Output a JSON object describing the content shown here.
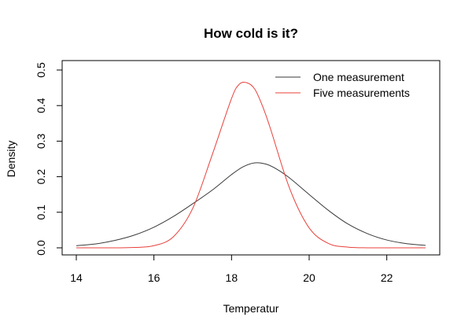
{
  "chart_data": {
    "type": "line",
    "title": "How cold is it?",
    "xlabel": "Temperatur",
    "ylabel": "Density",
    "xlim": [
      14,
      23
    ],
    "ylim": [
      0,
      0.5
    ],
    "x_ticks": [
      14,
      16,
      18,
      20,
      22
    ],
    "y_ticks": [
      0.0,
      0.1,
      0.2,
      0.3,
      0.4,
      0.5
    ],
    "x_tick_labels": [
      "14",
      "16",
      "18",
      "20",
      "22"
    ],
    "y_tick_labels": [
      "0.0",
      "0.1",
      "0.2",
      "0.3",
      "0.4",
      "0.5"
    ],
    "grid": false,
    "legend_position": "top-right",
    "series": [
      {
        "name": "One measurement",
        "color": "#3a3a3a",
        "x": [
          14.0,
          14.5,
          15.0,
          15.5,
          16.0,
          16.5,
          17.0,
          17.5,
          18.0,
          18.3,
          18.6,
          18.9,
          19.2,
          19.5,
          20.0,
          20.5,
          21.0,
          21.5,
          22.0,
          22.5,
          23.0
        ],
        "y": [
          0.006,
          0.011,
          0.021,
          0.036,
          0.058,
          0.088,
          0.124,
          0.162,
          0.206,
          0.228,
          0.239,
          0.235,
          0.219,
          0.196,
          0.15,
          0.105,
          0.067,
          0.04,
          0.022,
          0.012,
          0.007
        ]
      },
      {
        "name": "Five measurements",
        "color": "#e8403a",
        "x": [
          14.0,
          15.0,
          15.5,
          16.0,
          16.5,
          17.0,
          17.5,
          18.0,
          18.2,
          18.4,
          18.6,
          18.8,
          19.0,
          19.5,
          20.0,
          20.5,
          21.0,
          21.5,
          22.0,
          23.0
        ],
        "y": [
          0.0,
          0.0,
          0.001,
          0.006,
          0.031,
          0.111,
          0.261,
          0.42,
          0.46,
          0.464,
          0.446,
          0.398,
          0.336,
          0.166,
          0.056,
          0.012,
          0.002,
          0.0,
          0.0,
          0.0
        ]
      }
    ]
  }
}
